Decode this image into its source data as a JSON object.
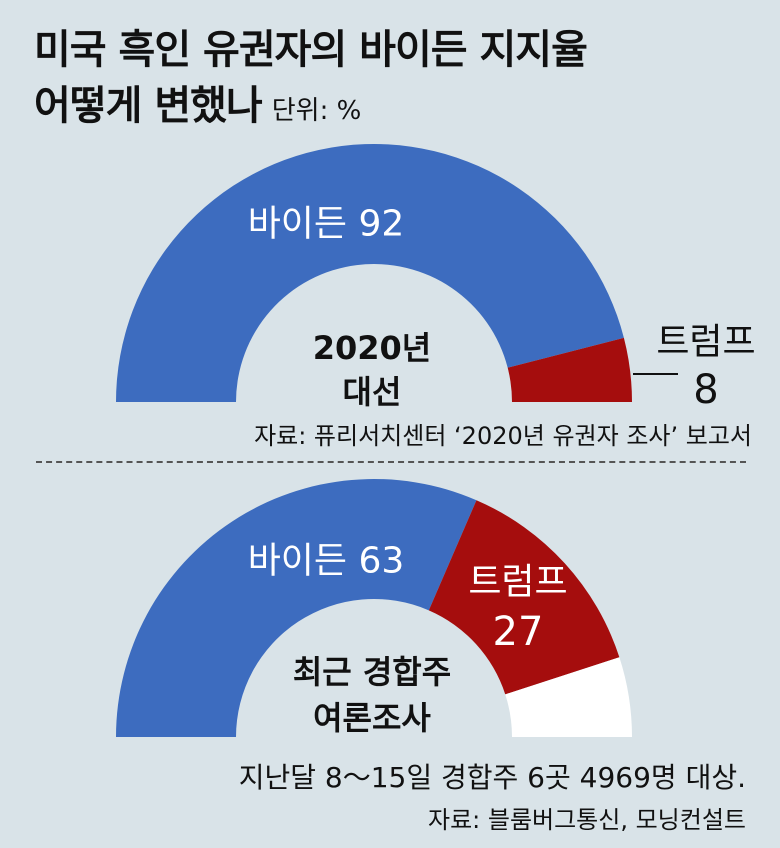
{
  "title": {
    "line1": "미국 흑인 유권자의 바이든 지지율",
    "line2": "어떻게 변했나",
    "unit": "단위: %"
  },
  "chart_data": [
    {
      "type": "pie",
      "subtype": "semicircle-donut",
      "center_label": [
        "2020년",
        "대선"
      ],
      "slices": [
        {
          "name": "바이든",
          "value": 92,
          "color": "#3d6cbf"
        },
        {
          "name": "트럼프",
          "value": 8,
          "color": "#a50d0d"
        }
      ],
      "source": "자료: 퓨리서치센터 ‘2020년 유권자 조사’ 보고서"
    },
    {
      "type": "pie",
      "subtype": "semicircle-donut",
      "center_label": [
        "최근 경합주",
        "여론조사"
      ],
      "slices": [
        {
          "name": "바이든",
          "value": 63,
          "color": "#3d6cbf"
        },
        {
          "name": "트럼프",
          "value": 27,
          "color": "#a50d0d"
        },
        {
          "name": "",
          "value": 10,
          "color": "#ffffff"
        }
      ],
      "note": "지난달 8～15일 경합주 6곳 4969명 대상.",
      "source": "자료: 블룸버그통신, 모닝컨설트"
    }
  ]
}
